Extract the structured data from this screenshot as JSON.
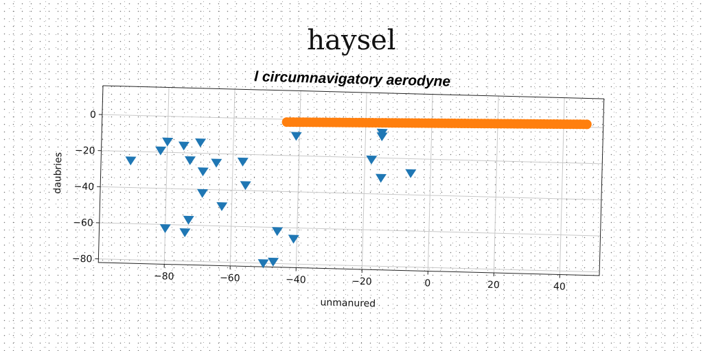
{
  "page": {
    "super_title": "haysel"
  },
  "chart_data": {
    "type": "scatter",
    "title": "l circumnavigatory aerodyne",
    "xlabel": "unmanured",
    "ylabel": "daubries",
    "xlim": [
      -100,
      52
    ],
    "ylim": [
      -82,
      16
    ],
    "xticks": [
      -80,
      -60,
      -40,
      -20,
      0,
      20,
      40
    ],
    "yticks": [
      0,
      -20,
      -40,
      -60,
      -80
    ],
    "grid": true,
    "legend": "none",
    "series": [
      {
        "marker": "triangle-down",
        "color": "#1f77b4",
        "points": [
          [
            -91,
            -25
          ],
          [
            -82,
            -19
          ],
          [
            -80,
            -14
          ],
          [
            -75,
            -16
          ],
          [
            -73,
            -24
          ],
          [
            -70,
            -14
          ],
          [
            -69,
            -30
          ],
          [
            -65,
            -25
          ],
          [
            -69,
            -42
          ],
          [
            -63,
            -49
          ],
          [
            -73,
            -57
          ],
          [
            -80,
            -62
          ],
          [
            -74,
            -64
          ],
          [
            -57,
            -24
          ],
          [
            -56,
            -37
          ],
          [
            -41,
            -9
          ],
          [
            -18,
            -21
          ],
          [
            -15,
            -6
          ],
          [
            -15,
            -8
          ],
          [
            -15,
            -31
          ],
          [
            -6,
            -28
          ],
          [
            -46,
            -62
          ],
          [
            -41,
            -66
          ],
          [
            -50,
            -80
          ],
          [
            -47,
            -79
          ]
        ]
      },
      {
        "marker": "circle",
        "color": "#ff7f0e",
        "x_range": [
          -44,
          47
        ],
        "y_range": [
          -1.5,
          1.6
        ],
        "count": 92
      }
    ]
  }
}
